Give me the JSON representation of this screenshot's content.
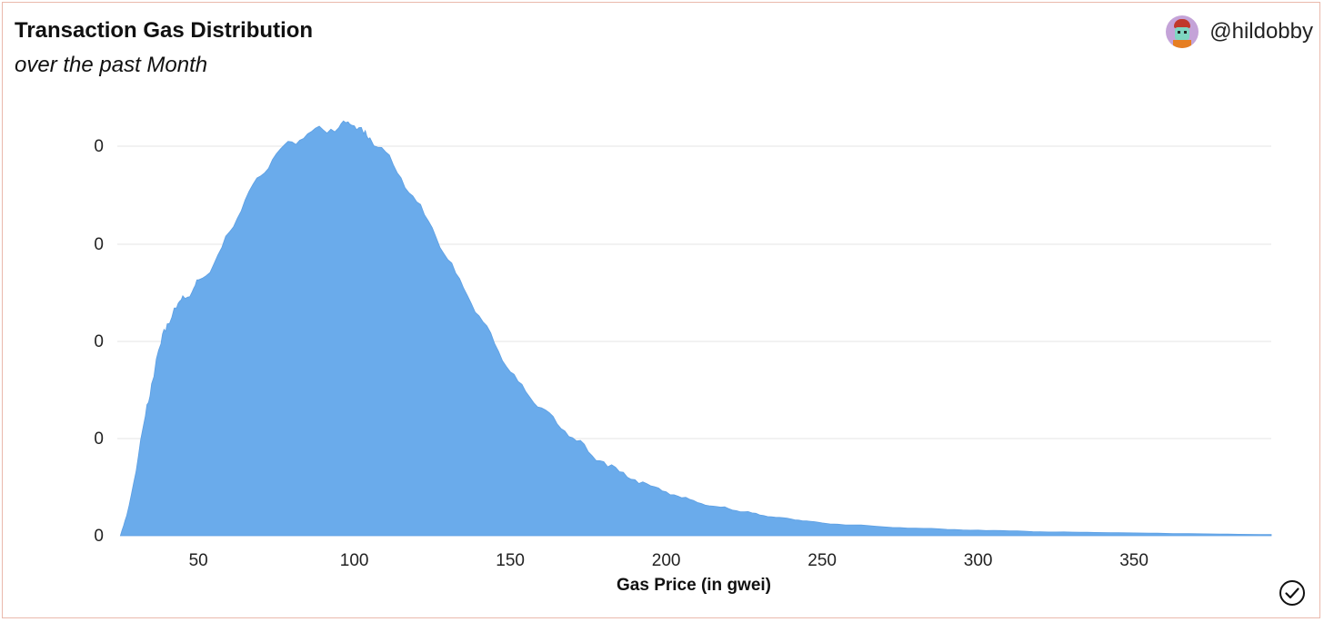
{
  "header": {
    "title": "Transaction Gas Distribution",
    "subtitle": "over the past Month",
    "author_handle": "@hildobby"
  },
  "icons": {
    "avatar": "avatar-icon",
    "check": "check-circle-icon"
  },
  "colors": {
    "area_fill": "#6aabeb",
    "frame_border": "#eab9ac",
    "gridline": "#e6e6e6"
  },
  "chart_data": {
    "type": "area",
    "title": "Transaction Gas Distribution",
    "subtitle": "over the past Month",
    "xlabel": "Gas Price (in gwei)",
    "ylabel": "",
    "xlim": [
      24,
      394
    ],
    "x_ticks": [
      50,
      100,
      150,
      200,
      250,
      300,
      350
    ],
    "y_tick_labels": [
      "0",
      "0",
      "0",
      "0",
      "0"
    ],
    "ylim": [
      0,
      1.0
    ],
    "grid": true,
    "legend": "none",
    "series": [
      {
        "x": [
          25,
          27,
          30,
          33,
          35,
          38,
          40,
          43,
          45,
          48,
          50,
          55,
          60,
          65,
          70,
          75,
          80,
          85,
          90,
          95,
          98,
          100,
          103,
          105,
          110,
          115,
          120,
          125,
          130,
          135,
          140,
          145,
          150,
          155,
          160,
          165,
          170,
          175,
          180,
          185,
          190,
          195,
          200,
          205,
          210,
          215,
          220,
          225,
          230,
          235,
          240,
          245,
          250,
          260,
          270,
          280,
          290,
          300,
          310,
          320,
          330,
          340,
          350,
          360,
          370,
          380,
          394
        ],
        "y": [
          0.0,
          0.05,
          0.16,
          0.3,
          0.38,
          0.48,
          0.53,
          0.57,
          0.6,
          0.61,
          0.64,
          0.68,
          0.76,
          0.84,
          0.9,
          0.955,
          0.985,
          1.005,
          1.015,
          1.02,
          1.035,
          1.025,
          1.005,
          0.995,
          0.96,
          0.895,
          0.835,
          0.77,
          0.69,
          0.62,
          0.55,
          0.48,
          0.41,
          0.36,
          0.32,
          0.28,
          0.245,
          0.21,
          0.185,
          0.16,
          0.14,
          0.125,
          0.11,
          0.095,
          0.083,
          0.074,
          0.068,
          0.06,
          0.052,
          0.046,
          0.042,
          0.037,
          0.032,
          0.027,
          0.022,
          0.019,
          0.016,
          0.014,
          0.012,
          0.01,
          0.009,
          0.008,
          0.007,
          0.006,
          0.005,
          0.004,
          0.003
        ]
      }
    ]
  }
}
